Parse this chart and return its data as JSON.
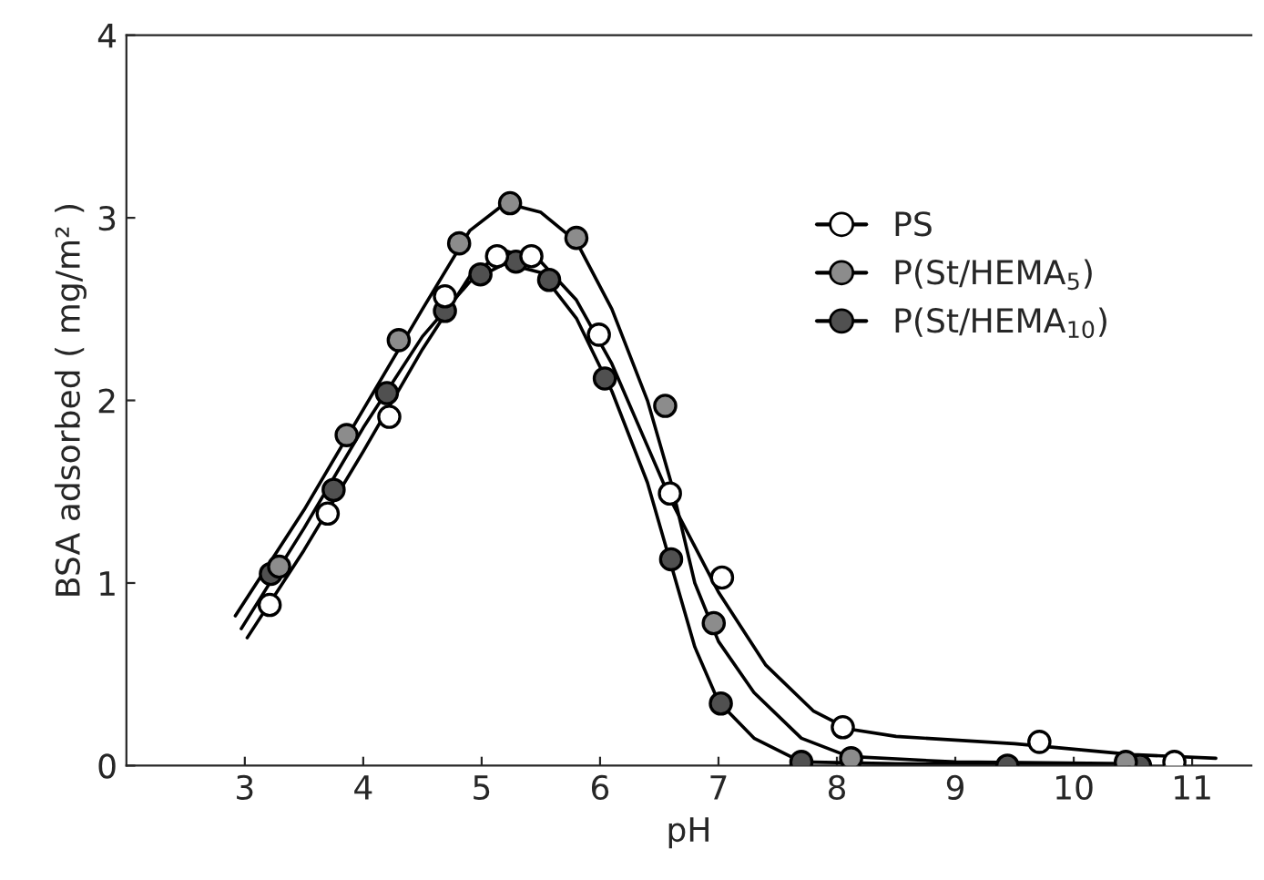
{
  "chart_data": {
    "type": "scatter",
    "xlabel": "pH",
    "ylabel": "BSA adsorbed ( mg/m² )",
    "xlim": [
      2,
      11.5
    ],
    "ylim": [
      0,
      4
    ],
    "xticks": [
      3,
      4,
      5,
      6,
      7,
      8,
      9,
      10,
      11
    ],
    "yticks": [
      0,
      1,
      2,
      3,
      4
    ],
    "grid": false,
    "legend": "top right",
    "series": [
      {
        "name": "PS",
        "marker": "circle",
        "color": "#ffffff",
        "x": [
          3.21,
          3.7,
          4.22,
          4.69,
          5.13,
          5.42,
          5.99,
          6.59,
          7.03,
          8.05,
          9.71,
          10.85
        ],
        "values": [
          0.88,
          1.38,
          1.91,
          2.57,
          2.79,
          2.79,
          2.36,
          1.49,
          1.03,
          0.21,
          0.13,
          0.02
        ]
      },
      {
        "name": "P(St/HEMA$_{5}$)",
        "marker": "circle",
        "color": "#8c8c8c",
        "x": [
          3.29,
          3.86,
          4.3,
          4.81,
          5.24,
          5.8,
          6.55,
          6.96,
          8.12,
          10.44
        ],
        "values": [
          1.09,
          1.81,
          2.33,
          2.86,
          3.08,
          2.89,
          1.97,
          0.78,
          0.04,
          0.02
        ]
      },
      {
        "name": "P(St/HEMA$_{10}$)",
        "marker": "circle",
        "color": "#505050",
        "x": [
          3.22,
          3.75,
          4.2,
          4.69,
          4.99,
          5.29,
          5.57,
          6.04,
          6.6,
          7.02,
          7.7,
          9.44,
          10.56
        ],
        "values": [
          1.05,
          1.51,
          2.04,
          2.49,
          2.69,
          2.76,
          2.66,
          2.12,
          1.13,
          0.34,
          0.02,
          0,
          0
        ]
      },
      {
        "type": "line",
        "marker": "none",
        "color": "#000000",
        "x": [
          3.02,
          3.5,
          4,
          4.5,
          4.9,
          5.2,
          5.5,
          5.8,
          6.1,
          6.4,
          6.6,
          6.8,
          7.0,
          7.4,
          7.8,
          8.1,
          8.5,
          9.5,
          10.5,
          11.2
        ],
        "values": [
          0.7,
          1.18,
          1.72,
          2.28,
          2.68,
          2.82,
          2.76,
          2.55,
          2.2,
          1.75,
          1.45,
          1.2,
          0.95,
          0.55,
          0.3,
          0.2,
          0.16,
          0.12,
          0.06,
          0.04
        ]
      },
      {
        "type": "line",
        "marker": "none",
        "color": "#000000",
        "x": [
          2.92,
          3.5,
          4,
          4.5,
          4.9,
          5.2,
          5.5,
          5.8,
          6.1,
          6.4,
          6.6,
          6.8,
          7.0,
          7.3,
          7.7,
          8.1,
          9,
          10.5
        ],
        "values": [
          0.82,
          1.4,
          1.95,
          2.5,
          2.93,
          3.08,
          3.03,
          2.87,
          2.5,
          2.0,
          1.55,
          1.0,
          0.68,
          0.4,
          0.15,
          0.05,
          0.02,
          0.01
        ]
      },
      {
        "type": "line",
        "marker": "none",
        "color": "#000000",
        "x": [
          2.97,
          3.5,
          4,
          4.5,
          4.9,
          5.2,
          5.5,
          5.8,
          6.1,
          6.4,
          6.6,
          6.8,
          7.0,
          7.3,
          7.7,
          8.5,
          10.5
        ],
        "values": [
          0.75,
          1.3,
          1.85,
          2.35,
          2.65,
          2.75,
          2.7,
          2.45,
          2.05,
          1.55,
          1.1,
          0.65,
          0.35,
          0.15,
          0.02,
          0.01,
          0.0
        ]
      }
    ]
  }
}
